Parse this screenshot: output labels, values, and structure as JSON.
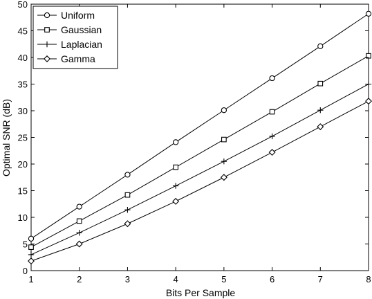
{
  "chart_data": {
    "type": "line",
    "title": "",
    "xlabel": "Bits Per Sample",
    "ylabel": "Optimal SNR (dB)",
    "xlim": [
      1,
      8
    ],
    "ylim": [
      0,
      50
    ],
    "xticks": [
      1,
      2,
      3,
      4,
      5,
      6,
      7,
      8
    ],
    "yticks": [
      0,
      5,
      10,
      15,
      20,
      25,
      30,
      35,
      40,
      45,
      50
    ],
    "grid": false,
    "legend_position": "top-left",
    "x": [
      1,
      2,
      3,
      4,
      5,
      6,
      7,
      8
    ],
    "series": [
      {
        "name": "Uniform",
        "marker": "circle",
        "values": [
          6.0,
          12.0,
          18.0,
          24.1,
          30.1,
          36.1,
          42.1,
          48.2
        ]
      },
      {
        "name": "Gaussian",
        "marker": "square",
        "values": [
          4.4,
          9.3,
          14.2,
          19.4,
          24.6,
          29.8,
          35.1,
          40.3
        ]
      },
      {
        "name": "Laplacian",
        "marker": "plus",
        "values": [
          3.0,
          7.1,
          11.4,
          15.9,
          20.5,
          25.2,
          30.1,
          35.0
        ]
      },
      {
        "name": "Gamma",
        "marker": "diamond",
        "values": [
          1.8,
          5.0,
          8.8,
          13.0,
          17.5,
          22.2,
          27.0,
          31.8
        ]
      }
    ]
  }
}
